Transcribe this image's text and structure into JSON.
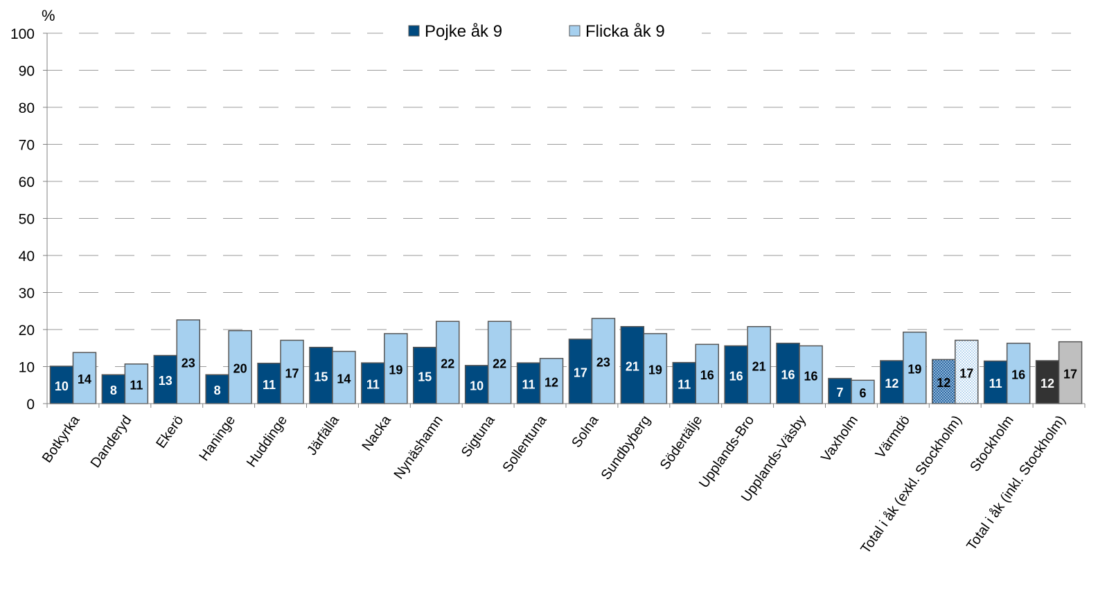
{
  "chart_data": {
    "type": "bar",
    "ylabel": "%",
    "ylim": [
      0,
      100
    ],
    "yticks": [
      0,
      10,
      20,
      30,
      40,
      50,
      60,
      70,
      80,
      90,
      100
    ],
    "grid": true,
    "legend_position": "top-center",
    "categories": [
      "Botkyrka",
      "Danderyd",
      "Ekerö",
      "Haninge",
      "Huddinge",
      "Järfälla",
      "Nacka",
      "Nynäshamn",
      "Sigtuna",
      "Sollentuna",
      "Solna",
      "Sundbyberg",
      "Södertälje",
      "Upplands-Bro",
      "Upplands-Väsby",
      "Vaxholm",
      "Värmdö",
      "Total i åk (exkl. Stockholm)",
      "Stockholm",
      "Total i åk (inkl. Stockholm)"
    ],
    "series": [
      {
        "name": "Pojke åk 9",
        "color": "#004a80",
        "values": [
          10,
          8,
          13,
          8,
          11,
          15,
          11,
          15,
          10,
          11,
          17,
          21,
          11,
          16,
          16,
          7,
          12,
          12,
          11,
          12
        ],
        "heights": [
          10.1,
          7.8,
          13.0,
          7.8,
          10.9,
          15.2,
          11.0,
          15.2,
          10.3,
          11.0,
          17.4,
          20.8,
          11.1,
          15.6,
          16.3,
          6.8,
          11.6,
          11.9,
          11.5,
          11.6
        ]
      },
      {
        "name": "Flicka åk 9",
        "color": "#a6d0ef",
        "values": [
          14,
          11,
          23,
          20,
          17,
          14,
          19,
          22,
          22,
          12,
          23,
          19,
          16,
          21,
          16,
          6,
          19,
          17,
          16,
          17
        ],
        "heights": [
          13.8,
          10.7,
          22.6,
          19.7,
          17.1,
          14.1,
          18.9,
          22.2,
          22.2,
          12.2,
          23.0,
          18.9,
          16.0,
          20.8,
          15.6,
          6.3,
          19.3,
          17.1,
          16.3,
          16.7
        ]
      }
    ],
    "special_styles": {
      "17": [
        "#4f78a8",
        "#dbe9f6"
      ],
      "19": [
        "#333333",
        "#bfbfbf"
      ]
    }
  }
}
